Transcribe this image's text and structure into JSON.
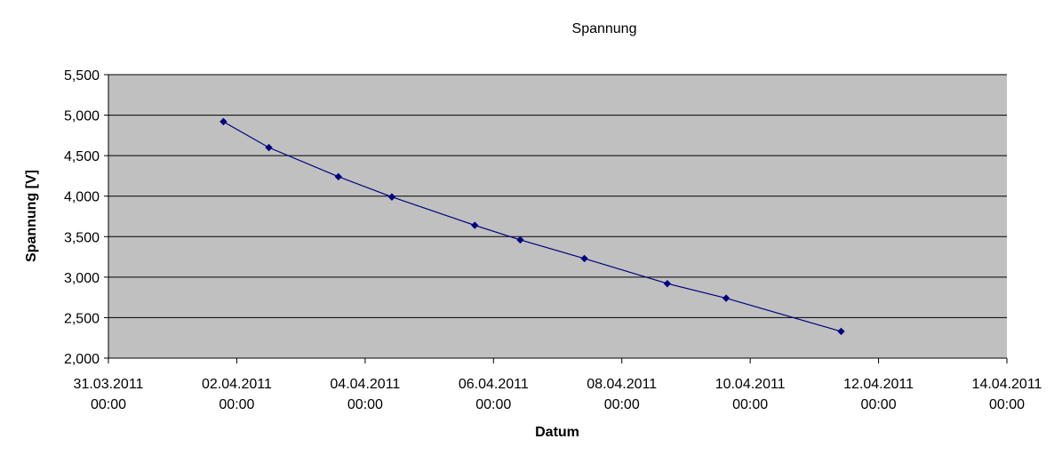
{
  "chart_data": {
    "type": "line",
    "title": "Spannung",
    "xlabel": "Datum",
    "ylabel": "Spannung [V]",
    "ylim": [
      2.0,
      5.5
    ],
    "y_ticks": [
      "2,000",
      "2,500",
      "3,000",
      "3,500",
      "4,000",
      "4,500",
      "5,000",
      "5,500"
    ],
    "x_range": [
      "2011-03-31T00:00",
      "2011-04-14T00:00"
    ],
    "x_ticks": [
      {
        "date": "31.03.2011",
        "time": "00:00"
      },
      {
        "date": "02.04.2011",
        "time": "00:00"
      },
      {
        "date": "04.04.2011",
        "time": "00:00"
      },
      {
        "date": "06.04.2011",
        "time": "00:00"
      },
      {
        "date": "08.04.2011",
        "time": "00:00"
      },
      {
        "date": "10.04.2011",
        "time": "00:00"
      },
      {
        "date": "12.04.2011",
        "time": "00:00"
      },
      {
        "date": "14.04.2011",
        "time": "00:00"
      }
    ],
    "grid": true,
    "legend": "none",
    "colors": {
      "plot_background": "#c0c0c0",
      "line": "#000080",
      "gridline": "#000000"
    },
    "series": [
      {
        "x": [
          "2011-04-01T19:00",
          "2011-04-02T12:00",
          "2011-04-03T14:00",
          "2011-04-04T10:00",
          "2011-04-05T17:00",
          "2011-04-06T10:00",
          "2011-04-07T10:00",
          "2011-04-08T17:00",
          "2011-04-09T15:00",
          "2011-04-11T10:00"
        ],
        "values": [
          4.92,
          4.6,
          4.24,
          3.99,
          3.64,
          3.46,
          3.23,
          2.92,
          2.74,
          2.33
        ]
      }
    ]
  }
}
